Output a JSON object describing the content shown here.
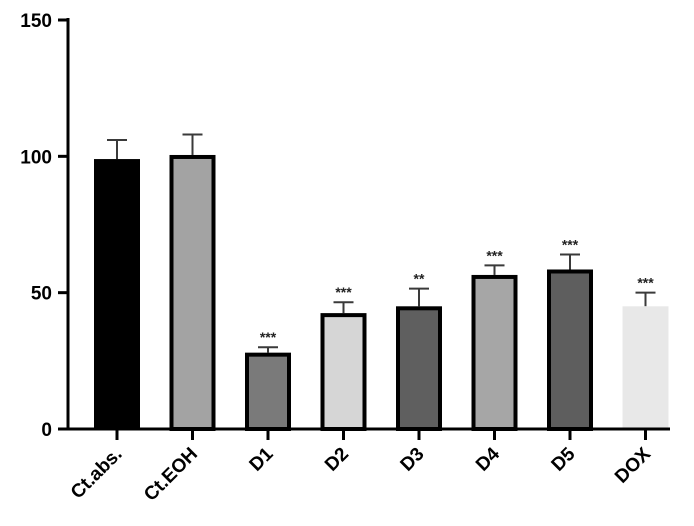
{
  "chart_data": {
    "type": "bar",
    "title": "",
    "xlabel": "",
    "ylabel": "",
    "ylim": [
      0,
      150
    ],
    "yticks": [
      0,
      50,
      100,
      150
    ],
    "grid": false,
    "categories": [
      "Ct.abs.",
      "Ct.EOH",
      "D1",
      "D2",
      "D3",
      "D4",
      "D5",
      "DOX"
    ],
    "values": [
      99,
      100.5,
      28,
      42.5,
      45,
      56.5,
      58.5,
      45
    ],
    "errors": [
      7,
      7.5,
      2,
      4,
      6.5,
      3.5,
      5.5,
      5
    ],
    "significance": [
      "",
      "",
      "***",
      "***",
      "**",
      "***",
      "***",
      "***"
    ],
    "colors": [
      "#000000",
      "#a3a3a3",
      "#7a7a7a",
      "#d6d6d6",
      "#5f5f5f",
      "#a6a6a6",
      "#5e5e5e",
      "#e8e8e8"
    ],
    "outlined": [
      false,
      true,
      true,
      true,
      true,
      true,
      true,
      false
    ]
  }
}
